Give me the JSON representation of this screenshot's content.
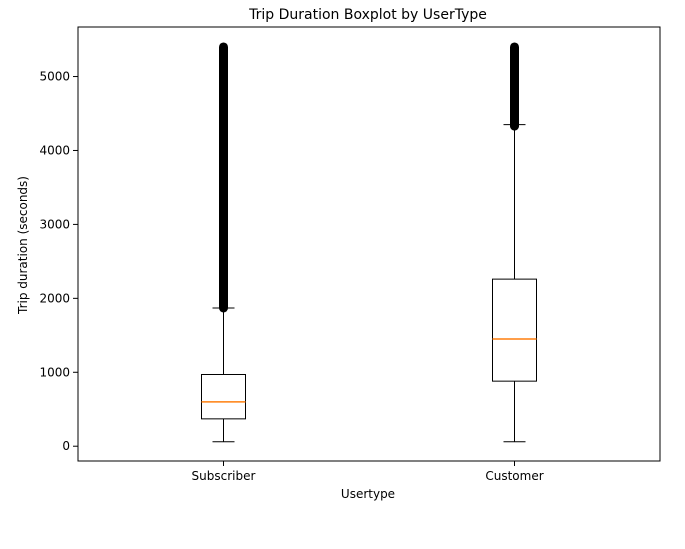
{
  "chart_data": {
    "type": "boxplot",
    "title": "Trip Duration Boxplot by UserType",
    "xlabel": "Usertype",
    "ylabel": "Trip duration (seconds)",
    "ylim": [
      -200,
      5670
    ],
    "yticks": [
      0,
      1000,
      2000,
      3000,
      4000,
      5000
    ],
    "grid": false,
    "categories": [
      "Subscriber",
      "Customer"
    ],
    "boxes": [
      {
        "category": "Subscriber",
        "whisker_low": 60,
        "q1": 370,
        "median": 600,
        "q3": 970,
        "whisker_high": 1870,
        "outliers_range": [
          1870,
          5400
        ]
      },
      {
        "category": "Customer",
        "whisker_low": 60,
        "q1": 880,
        "median": 1450,
        "q3": 2260,
        "whisker_high": 4350,
        "outliers_range": [
          4330,
          5400
        ]
      }
    ],
    "colors": {
      "box": "#000000",
      "median": "#ff7f0e",
      "outlier": "#000000"
    }
  }
}
